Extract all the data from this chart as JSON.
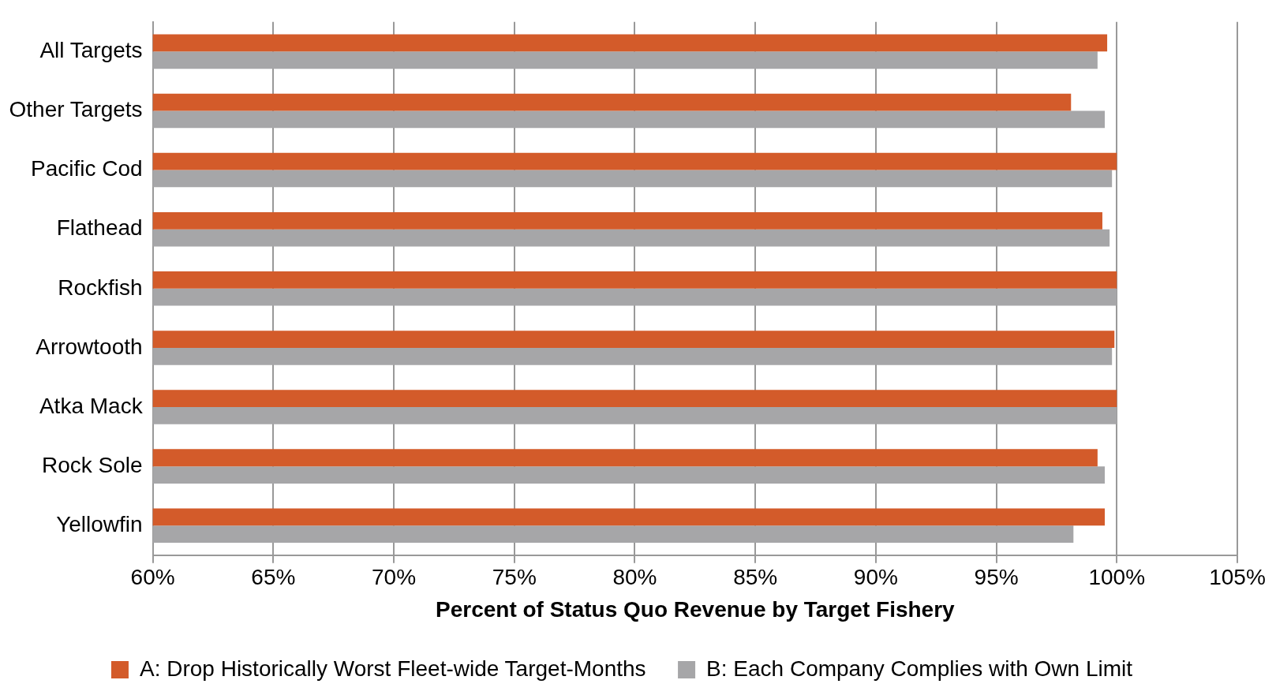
{
  "chart_data": {
    "type": "bar",
    "orientation": "horizontal",
    "xlabel": "Percent of Status Quo Revenue by Target Fishery",
    "categories": [
      "All Targets",
      "Other Targets",
      "Pacific Cod",
      "Flathead",
      "Rockfish",
      "Arrowtooth",
      "Atka Mack",
      "Rock Sole",
      "Yellowfin"
    ],
    "series": [
      {
        "name": "A: Drop Historically Worst Fleet-wide Target-Months",
        "color": "#d35b2a",
        "values": [
          99.6,
          98.1,
          100,
          99.4,
          100,
          99.9,
          100,
          99.2,
          99.5
        ]
      },
      {
        "name": "B: Each Company Complies with Own Limit",
        "color": "#a6a6a8",
        "values": [
          99.2,
          99.5,
          99.8,
          99.7,
          100,
          99.8,
          100,
          99.5,
          98.2
        ]
      }
    ],
    "xlim": [
      60,
      105
    ],
    "xticks": [
      {
        "value": 60,
        "label": "60%"
      },
      {
        "value": 65,
        "label": "65%"
      },
      {
        "value": 70,
        "label": "70%"
      },
      {
        "value": 75,
        "label": "75%"
      },
      {
        "value": 80,
        "label": "80%"
      },
      {
        "value": 85,
        "label": "85%"
      },
      {
        "value": 90,
        "label": "90%"
      },
      {
        "value": 95,
        "label": "95%"
      },
      {
        "value": 100,
        "label": "100%"
      },
      {
        "value": 105,
        "label": "105%"
      }
    ],
    "grid": "x",
    "legend": "bottom"
  }
}
